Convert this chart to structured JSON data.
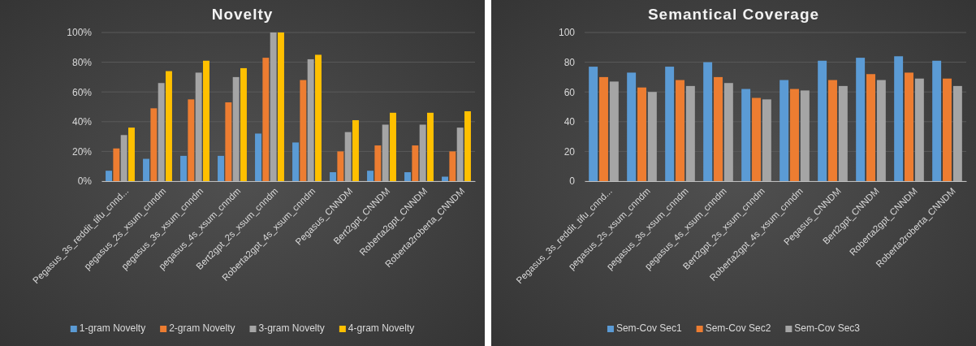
{
  "chart_data": [
    {
      "type": "bar",
      "title": "Novelty",
      "categories": [
        "Pegasus_3s_reddit_tifu_cnnd...",
        "pegasus_2s_xsum_cnndm",
        "pegasus_3s_xsum_cnndm",
        "pegasus_4s_xsum_cnndm",
        "Bert2gpt_2s_xsum_cnndm",
        "Roberta2gpt_4s_xsum_cnndm",
        "Pegasus_CNNDM",
        "Bert2gpt_CNNDM",
        "Roberta2gpt_CNNDM",
        "Roberta2roberta_CNNDM"
      ],
      "series": [
        {
          "name": "1-gram Novelty",
          "color": "#5b9bd5",
          "values": [
            7,
            15,
            17,
            17,
            32,
            26,
            6,
            7,
            6,
            3
          ]
        },
        {
          "name": "2-gram Novelty",
          "color": "#ed7d31",
          "values": [
            22,
            49,
            55,
            53,
            83,
            68,
            20,
            24,
            24,
            20
          ]
        },
        {
          "name": "3-gram Novelty",
          "color": "#a5a5a5",
          "values": [
            31,
            66,
            73,
            70,
            100,
            82,
            33,
            38,
            38,
            36
          ]
        },
        {
          "name": "4-gram Novelty",
          "color": "#ffc000",
          "values": [
            36,
            74,
            81,
            76,
            100,
            85,
            41,
            46,
            46,
            47
          ]
        }
      ],
      "ylim": [
        0,
        100
      ],
      "yticks": [
        {
          "value": 0,
          "label": "0%"
        },
        {
          "value": 20,
          "label": "20%"
        },
        {
          "value": 40,
          "label": "40%"
        },
        {
          "value": 60,
          "label": "60%"
        },
        {
          "value": 80,
          "label": "80%"
        },
        {
          "value": 100,
          "label": "100%"
        }
      ],
      "grid": "y",
      "legend": "bottom"
    },
    {
      "type": "bar",
      "title": "Semantical Coverage",
      "categories": [
        "Pegasus_3s_reddit_tifu_cnnd...",
        "pegasus_2s_xsum_cnndm",
        "pegasus_3s_xsum_cnndm",
        "pegasus_4s_xsum_cnndm",
        "Bert2gpt_2s_xsum_cnndm",
        "Roberta2gpt_4s_xsum_cnndm",
        "Pegasus_CNNDM",
        "Bert2gpt_CNNDM",
        "Roberta2gpt_CNNDM",
        "Roberta2roberta_CNNDM"
      ],
      "series": [
        {
          "name": "Sem-Cov Sec1",
          "color": "#5b9bd5",
          "values": [
            77,
            73,
            77,
            80,
            62,
            68,
            81,
            83,
            84,
            81
          ]
        },
        {
          "name": "Sem-Cov Sec2",
          "color": "#ed7d31",
          "values": [
            70,
            63,
            68,
            70,
            56,
            62,
            68,
            72,
            73,
            69
          ]
        },
        {
          "name": "Sem-Cov Sec3",
          "color": "#a5a5a5",
          "values": [
            67,
            60,
            64,
            66,
            55,
            61,
            64,
            68,
            69,
            64
          ]
        }
      ],
      "ylim": [
        0,
        100
      ],
      "yticks": [
        0,
        20,
        40,
        60,
        80,
        100
      ],
      "grid": "y",
      "legend": "bottom"
    }
  ]
}
